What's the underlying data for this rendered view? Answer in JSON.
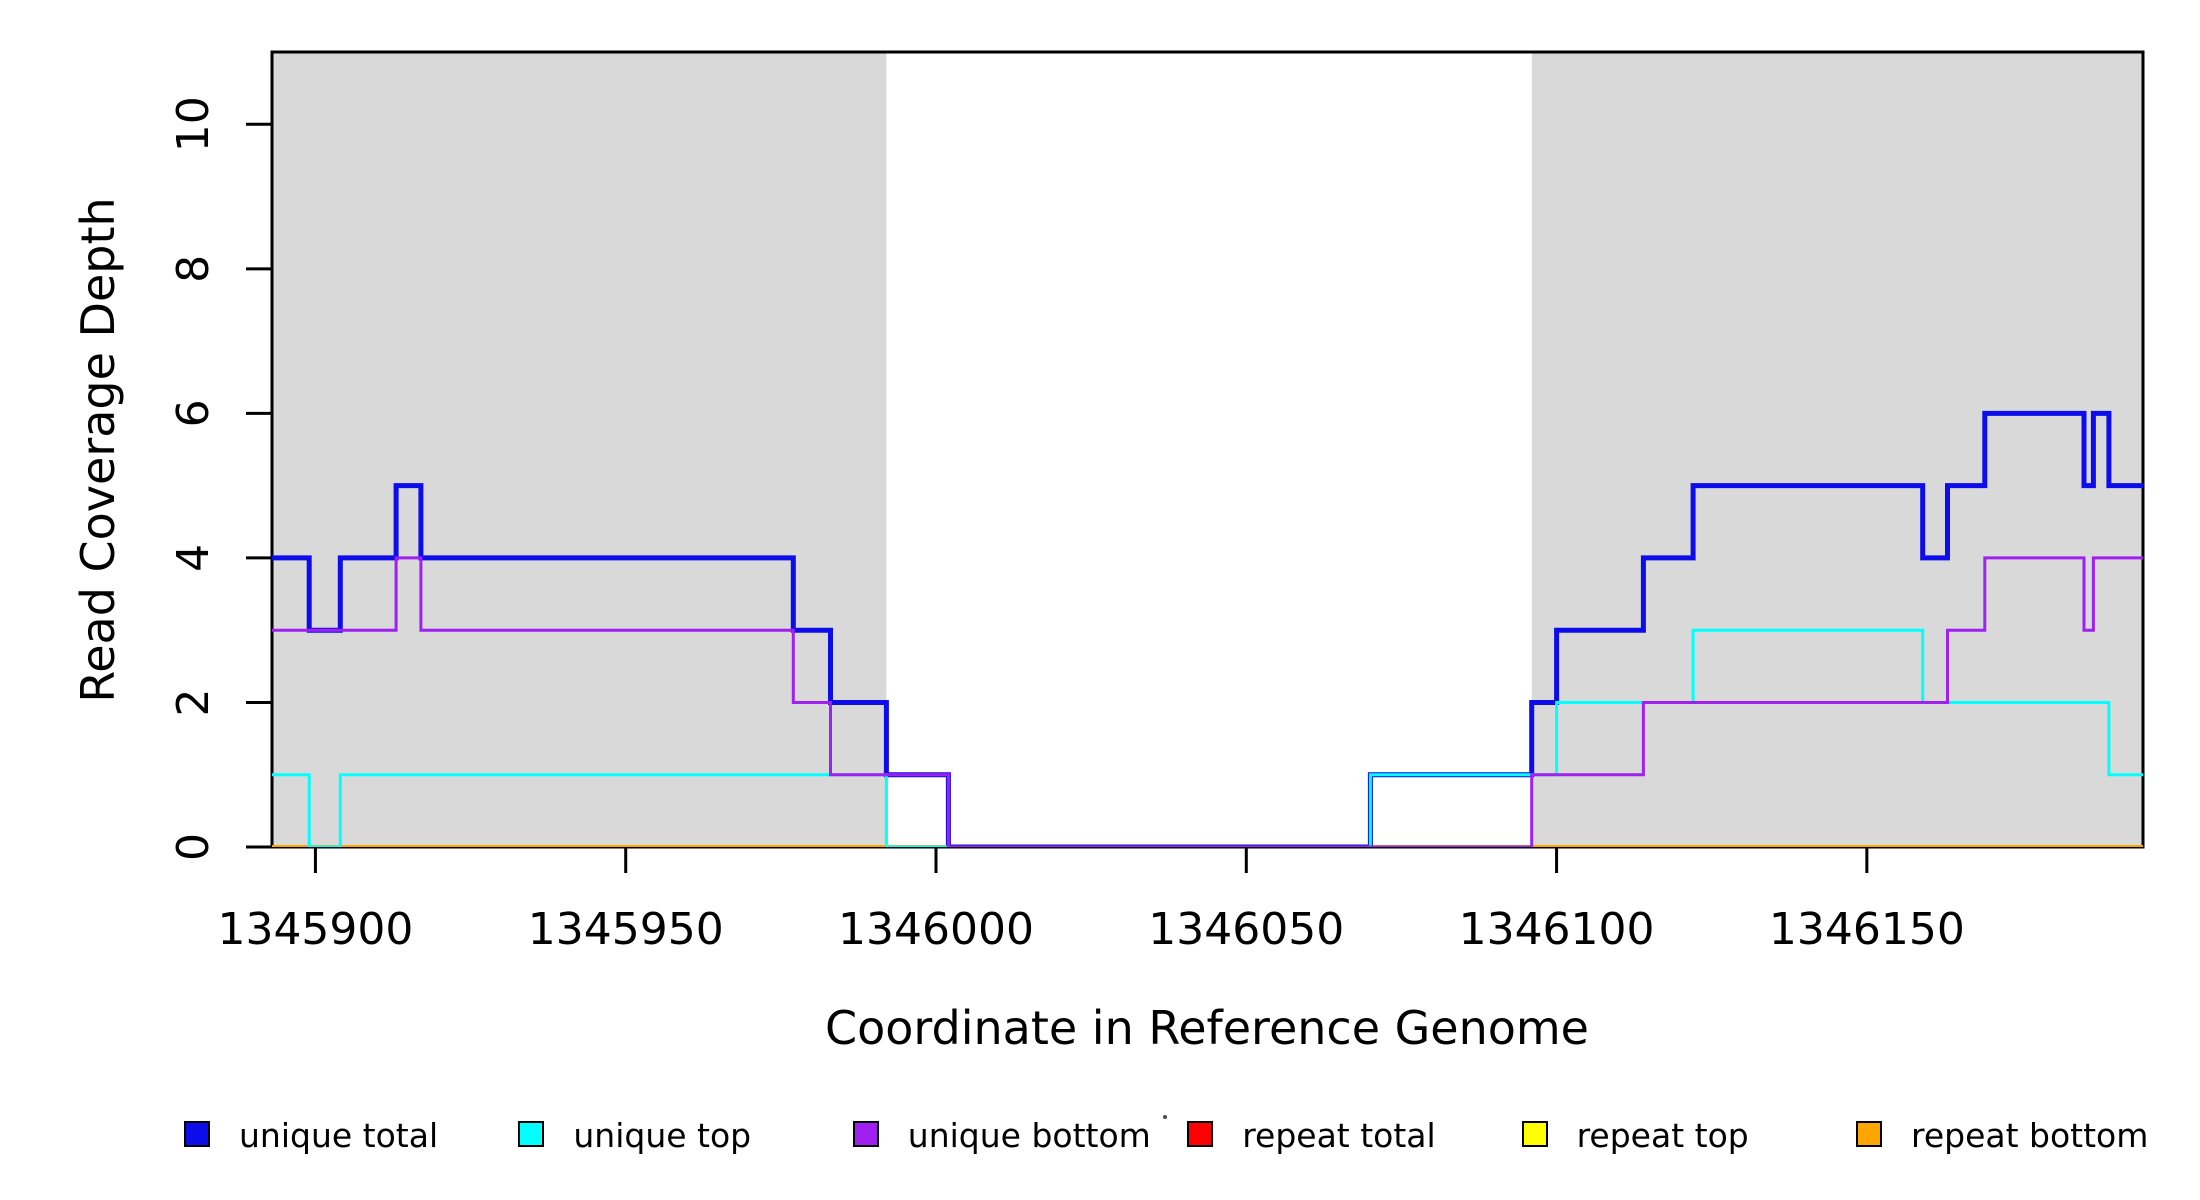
{
  "chart_data": {
    "type": "line",
    "subtype": "step-after",
    "title": "",
    "xlabel": "Coordinate in Reference Genome",
    "ylabel": "Read Coverage Depth",
    "xlim": [
      1345893,
      1346194.5
    ],
    "ylim": [
      0,
      11
    ],
    "x_ticks": [
      1345900,
      1345950,
      1346000,
      1346050,
      1346100,
      1346150
    ],
    "x_tick_labels": [
      "1345900",
      "1345950",
      "1346000",
      "1346050",
      "1346100",
      "1346150"
    ],
    "y_ticks": [
      0,
      2,
      4,
      6,
      8,
      10
    ],
    "y_tick_labels": [
      "0",
      "2",
      "4",
      "6",
      "8",
      "10"
    ],
    "grid": false,
    "legend_position": "bottom",
    "frame_color": "#000000",
    "background_color": "#ffffff",
    "shaded_regions": [
      {
        "x0": 1345893,
        "x1": 1345992,
        "color": "#d9d9d9"
      },
      {
        "x0": 1346096,
        "x1": 1346194.5,
        "color": "#d9d9d9"
      }
    ],
    "paint_order": [
      3,
      4,
      5,
      0,
      1,
      2
    ],
    "series": [
      {
        "name": "unique_total",
        "label": "unique total",
        "color": "#0d0deb",
        "line_width": 5,
        "steps": [
          [
            1345893,
            4
          ],
          [
            1345899,
            3
          ],
          [
            1345904,
            4
          ],
          [
            1345913,
            5
          ],
          [
            1345917,
            4
          ],
          [
            1345977,
            3
          ],
          [
            1345983,
            2
          ],
          [
            1345992,
            1
          ],
          [
            1346002,
            0
          ],
          [
            1346070,
            1
          ],
          [
            1346096,
            2
          ],
          [
            1346100,
            3
          ],
          [
            1346114,
            4
          ],
          [
            1346122,
            5
          ],
          [
            1346159,
            4
          ],
          [
            1346163,
            5
          ],
          [
            1346169,
            6
          ],
          [
            1346185,
            5
          ],
          [
            1346186.5,
            6
          ],
          [
            1346189,
            5
          ]
        ]
      },
      {
        "name": "unique_top",
        "label": "unique top",
        "color": "#00ffff",
        "line_width": 3,
        "steps": [
          [
            1345893,
            1
          ],
          [
            1345899,
            0
          ],
          [
            1345904,
            1
          ],
          [
            1345992,
            0
          ],
          [
            1346070,
            1
          ],
          [
            1346100,
            2
          ],
          [
            1346122,
            3
          ],
          [
            1346159,
            2
          ],
          [
            1346189,
            1
          ]
        ]
      },
      {
        "name": "unique_bottom",
        "label": "unique bottom",
        "color": "#a020f0",
        "line_width": 3,
        "steps": [
          [
            1345893,
            3
          ],
          [
            1345913,
            4
          ],
          [
            1345917,
            3
          ],
          [
            1345977,
            2
          ],
          [
            1345983,
            1
          ],
          [
            1346002,
            0
          ],
          [
            1346096,
            1
          ],
          [
            1346114,
            2
          ],
          [
            1346163,
            3
          ],
          [
            1346169,
            4
          ],
          [
            1346185,
            3
          ],
          [
            1346186.5,
            4
          ]
        ]
      },
      {
        "name": "repeat_total",
        "label": "repeat total",
        "color": "#ff0000",
        "line_width": 3,
        "steps": [
          [
            1345893,
            0
          ]
        ]
      },
      {
        "name": "repeat_top",
        "label": "repeat top",
        "color": "#ffff00",
        "line_width": 3,
        "steps": [
          [
            1345893,
            0
          ]
        ]
      },
      {
        "name": "repeat_bottom",
        "label": "repeat bottom",
        "color": "#ffa500",
        "line_width": 4,
        "steps": [
          [
            1345893,
            0
          ]
        ]
      }
    ]
  }
}
